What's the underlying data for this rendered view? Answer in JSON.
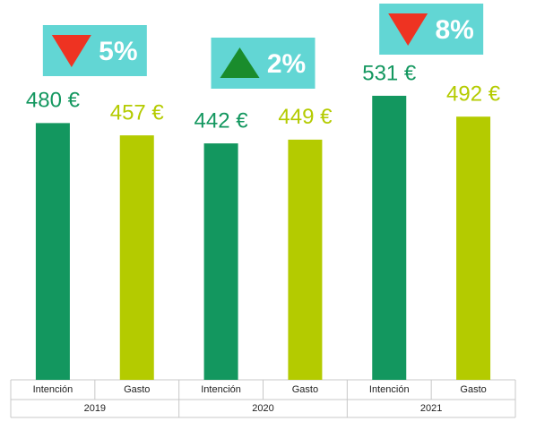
{
  "chart_data": {
    "type": "bar",
    "categories": [
      "2019",
      "2020",
      "2021"
    ],
    "series": [
      {
        "name": "Intención",
        "color": "#13975f",
        "values": [
          480,
          442,
          531
        ],
        "value_labels": [
          "480 €",
          "442 €",
          "531 €"
        ]
      },
      {
        "name": "Gasto",
        "color": "#b4cb00",
        "values": [
          457,
          449,
          492
        ],
        "value_labels": [
          "457 €",
          "449 €",
          "492 €"
        ]
      }
    ],
    "ylim": [
      0,
      700
    ],
    "annotations": [
      {
        "label": "5%",
        "trend": "down",
        "color": "#ee3322"
      },
      {
        "label": "2%",
        "trend": "up",
        "color": "#1a8c2c"
      },
      {
        "label": "8%",
        "trend": "down",
        "color": "#ee3322"
      }
    ],
    "annotation_box_color": "#62d6d4"
  }
}
